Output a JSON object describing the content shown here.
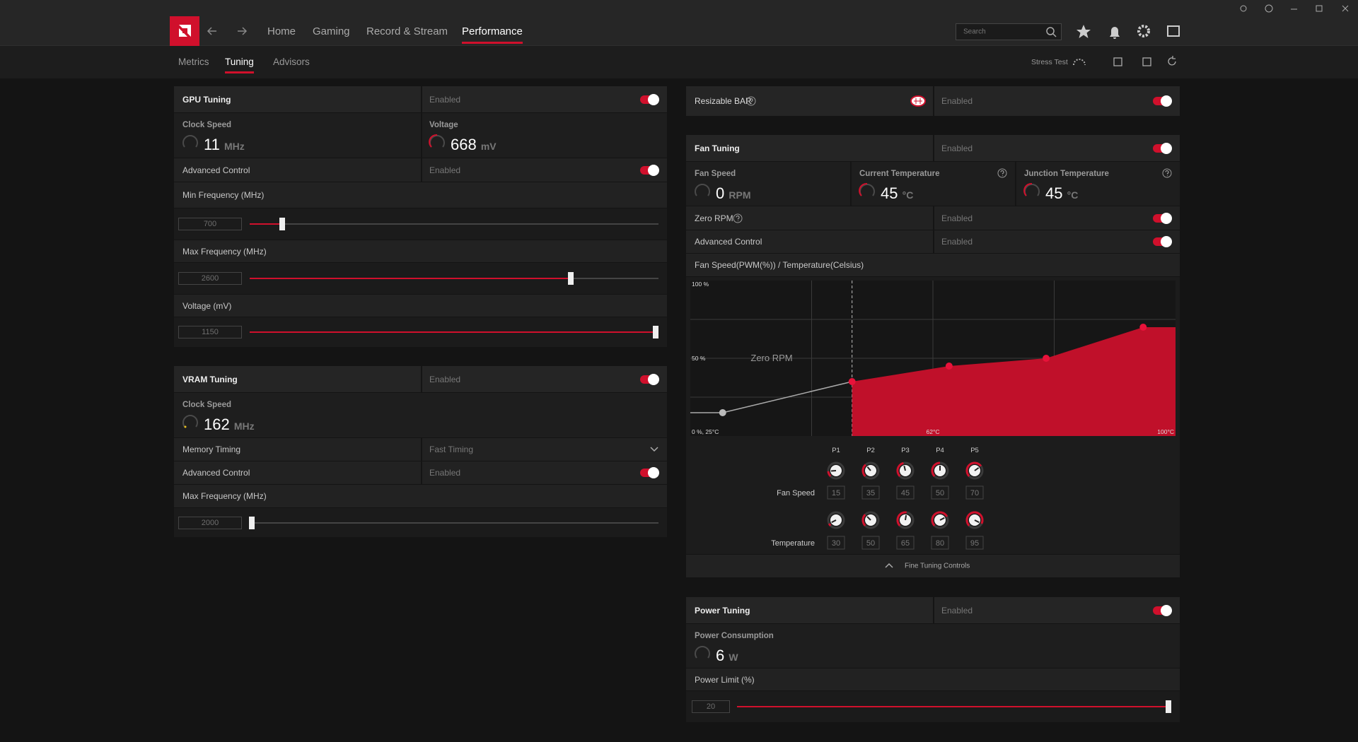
{
  "nav": {
    "items": [
      "Home",
      "Gaming",
      "Record & Stream",
      "Performance"
    ],
    "search_placeholder": "Search"
  },
  "subnav": {
    "items": [
      "Metrics",
      "Tuning",
      "Advisors"
    ],
    "stress_test": "Stress Test"
  },
  "gpu_tuning": {
    "title": "GPU Tuning",
    "status": "Enabled",
    "clock_speed": {
      "label": "Clock Speed",
      "value": 11,
      "unit": "MHz"
    },
    "voltage": {
      "label": "Voltage",
      "value": 668,
      "unit": "mV"
    },
    "advanced_control": {
      "label": "Advanced Control",
      "status": "Enabled"
    },
    "sliders": [
      {
        "label": "Min Frequency (MHz)",
        "value": 700
      },
      {
        "label": "Max Frequency (MHz)",
        "value": 2600
      },
      {
        "label": "Voltage (mV)",
        "value": 1150
      }
    ]
  },
  "vram_tuning": {
    "title": "VRAM Tuning",
    "status": "Enabled",
    "clock_speed": {
      "label": "Clock Speed",
      "value": 162,
      "unit": "MHz"
    },
    "memory_timing": {
      "label": "Memory Timing",
      "value": "Fast Timing"
    },
    "advanced_control": {
      "label": "Advanced Control",
      "status": "Enabled"
    },
    "sliders": [
      {
        "label": "Max Frequency (MHz)",
        "value": 2000
      }
    ]
  },
  "resizable_bar": {
    "label": "Resizable BAR",
    "status": "Enabled"
  },
  "fan_tuning": {
    "title": "Fan Tuning",
    "status": "Enabled",
    "stats": [
      {
        "label": "Fan Speed",
        "value": 0,
        "unit": "RPM"
      },
      {
        "label": "Current Temperature",
        "value": 45,
        "unit": "°C"
      },
      {
        "label": "Junction Temperature",
        "value": 45,
        "unit": "°C"
      }
    ],
    "zero_rpm": {
      "label": "Zero RPM",
      "status": "Enabled"
    },
    "advanced_control": {
      "label": "Advanced Control",
      "status": "Enabled"
    },
    "curve": {
      "title": "Fan Speed(PWM(%)) / Temperature(Celsius)",
      "y_top_label": "100 %",
      "y_mid_label": "50 %",
      "origin_label": "0 %, 25°C",
      "x_mid_label": "62°C",
      "x_end_label": "100°C",
      "zero_rpm_label": "Zero RPM",
      "xlim": [
        25,
        100
      ],
      "ylim": [
        0,
        100
      ],
      "points": [
        "P1",
        "P2",
        "P3",
        "P4",
        "P5"
      ],
      "fan_speed_label": "Fan Speed",
      "fan_speed": [
        15,
        35,
        45,
        50,
        70
      ],
      "temperature_label": "Temperature",
      "temperature": [
        30,
        50,
        65,
        80,
        95
      ]
    },
    "fine_tuning_controls": "Fine Tuning Controls"
  },
  "power_tuning": {
    "title": "Power Tuning",
    "status": "Enabled",
    "power_consumption": {
      "label": "Power Consumption",
      "value": 6,
      "unit": "W"
    },
    "power_limit": {
      "label": "Power Limit (%)",
      "value": 20
    }
  }
}
